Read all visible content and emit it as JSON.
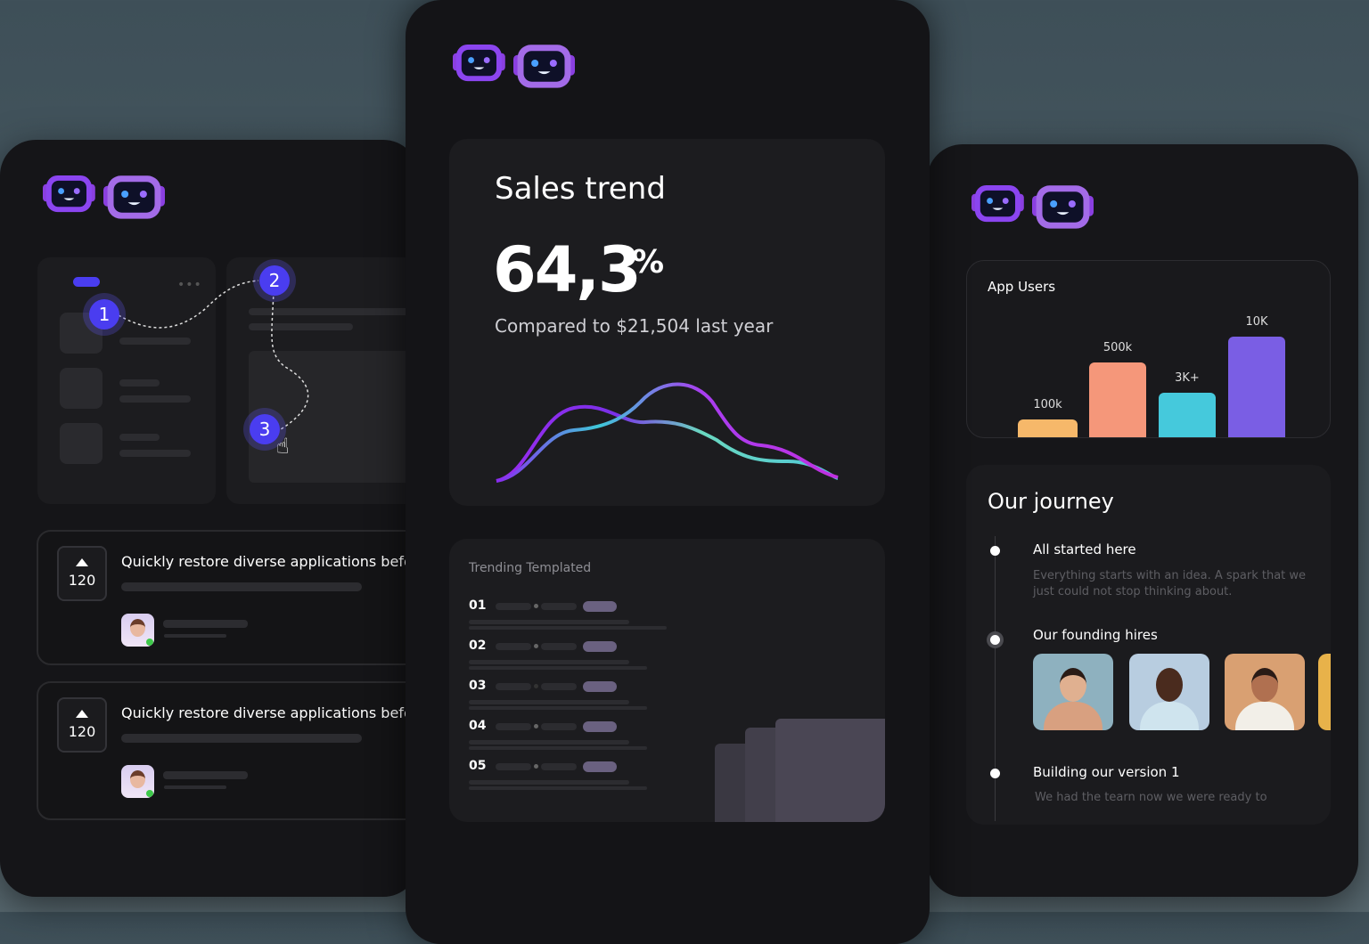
{
  "left_panel": {
    "steps": [
      "1",
      "2",
      "3"
    ],
    "posts": [
      {
        "votes": "120",
        "title": "Quickly restore diverse applications before"
      },
      {
        "votes": "120",
        "title": "Quickly restore diverse applications before"
      }
    ]
  },
  "center_panel": {
    "sales": {
      "title": "Sales trend",
      "value": "64,3",
      "unit": "%",
      "comparison": "Compared to $21,504 last year"
    },
    "trending": {
      "title": "Trending Templated",
      "items": [
        "01",
        "02",
        "03",
        "04",
        "05"
      ]
    }
  },
  "right_panel": {
    "app_users": {
      "title": "App Users",
      "bars": [
        {
          "label": "100k",
          "level": 0.18,
          "color": "#f6b86a"
        },
        {
          "label": "500k",
          "level": 0.74,
          "color": "#f5977a"
        },
        {
          "label": "3K+",
          "level": 0.44,
          "color": "#45c9dc"
        },
        {
          "label": "10K",
          "level": 1.0,
          "color": "#7a5ee4"
        }
      ]
    },
    "journey": {
      "title": "Our journey",
      "steps": [
        {
          "title": "All started here",
          "text": "Everything starts with an idea. A spark that we just could not stop thinking about."
        },
        {
          "title": "Our founding hires",
          "text": ""
        },
        {
          "title": "Building our version 1",
          "text": "We had the tearn now we were ready to"
        }
      ]
    }
  },
  "colors": {
    "accent": "#4a3df0",
    "robot": "#8a4df0",
    "background": "#4a5a63"
  }
}
